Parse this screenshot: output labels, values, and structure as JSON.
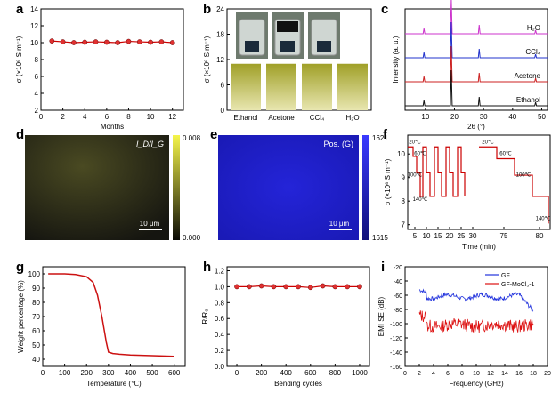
{
  "chart_data": [
    {
      "panel": "a",
      "type": "line",
      "x": [
        1,
        2,
        3,
        4,
        5,
        6,
        7,
        8,
        9,
        10,
        11,
        12
      ],
      "values": [
        10.2,
        10.1,
        10.0,
        10.05,
        10.1,
        10.05,
        10.0,
        10.15,
        10.1,
        10.05,
        10.1,
        10.0
      ],
      "xlabel": "Months",
      "ylabel": "σ (×10⁶ S m⁻¹)",
      "xticks": [
        0,
        2,
        4,
        6,
        8,
        10,
        12
      ],
      "yticks": [
        2,
        4,
        6,
        8,
        10,
        12,
        14
      ],
      "xlim": [
        0,
        13
      ],
      "ylim": [
        2,
        14
      ],
      "line_color": "#cc0000",
      "marker_color": "#e03030"
    },
    {
      "panel": "b",
      "type": "bar",
      "categories": [
        "Ethanol",
        "Acetone",
        "CCl₄",
        "H₂O"
      ],
      "values": [
        11.0,
        11.0,
        11.0,
        11.0
      ],
      "ylabel": "σ (×10⁶ S m⁻¹)",
      "yticks": [
        0,
        6,
        12,
        18,
        24
      ],
      "ylim": [
        0,
        24
      ],
      "bar_color": "#8a8a1a"
    },
    {
      "panel": "c",
      "type": "line",
      "series": [
        {
          "name": "H₂O",
          "color": "#cc33cc"
        },
        {
          "name": "CCl₄",
          "color": "#2233cc"
        },
        {
          "name": "Acetone",
          "color": "#cc2222"
        },
        {
          "name": "Ethanol",
          "color": "#111111"
        }
      ],
      "peaks": [
        9.5,
        18.9,
        28.5,
        47.9
      ],
      "xlabel": "2θ (°)",
      "ylabel": "Intensity (a. u.)",
      "xticks": [
        10,
        20,
        30,
        40,
        50
      ],
      "xlim": [
        3,
        52
      ]
    },
    {
      "panel": "d",
      "type": "heatmap",
      "label": "I_D/I_G",
      "colorbar": [
        "0.008",
        "0.000"
      ],
      "scalebar": "10 μm",
      "colors": [
        "#f5f54a",
        "#0a0a05"
      ]
    },
    {
      "panel": "e",
      "type": "heatmap",
      "label": "Pos. (G)",
      "colorbar": [
        "1621",
        "1615"
      ],
      "scalebar": "10 μm",
      "colors": [
        "#3a3aff",
        "#10107a"
      ]
    },
    {
      "panel": "f",
      "type": "line",
      "xlabel": "Time (min)",
      "ylabel": "σ (×10⁶ S m⁻¹)",
      "xticklabels": [
        "5",
        "10",
        "15",
        "20",
        "25",
        "30",
        "75",
        "80"
      ],
      "yticks": [
        7,
        8,
        9,
        10
      ],
      "ylim": [
        6.8,
        10.8
      ],
      "temps": [
        "20℃",
        "60℃",
        "100℃",
        "140℃",
        "20℃",
        "60℃",
        "100℃",
        "140℃"
      ],
      "steps": [
        10.3,
        9.8,
        9.1,
        8.2
      ],
      "line_color": "#cc0000"
    },
    {
      "panel": "g",
      "type": "line",
      "x": [
        25,
        100,
        150,
        200,
        230,
        250,
        270,
        290,
        300,
        320,
        350,
        400,
        500,
        600
      ],
      "values": [
        100,
        100,
        99.5,
        98,
        94,
        85,
        70,
        52,
        45,
        44,
        43.5,
        43,
        42.5,
        42
      ],
      "xlabel": "Temperature (℃)",
      "ylabel": "Weight percentage (%)",
      "xticks": [
        0,
        100,
        200,
        300,
        400,
        500,
        600
      ],
      "yticks": [
        40,
        50,
        60,
        70,
        80,
        90,
        100
      ],
      "xlim": [
        0,
        650
      ],
      "ylim": [
        35,
        105
      ],
      "line_color": "#cc1111"
    },
    {
      "panel": "h",
      "type": "line",
      "x": [
        0,
        100,
        200,
        300,
        400,
        500,
        600,
        700,
        800,
        900,
        1000
      ],
      "values": [
        1.0,
        1.0,
        1.01,
        1.0,
        1.0,
        1.0,
        0.99,
        1.01,
        1.0,
        1.0,
        1.0
      ],
      "xlabel": "Bending cycles",
      "ylabel": "R/R₀",
      "xticks": [
        0,
        200,
        400,
        600,
        800,
        1000
      ],
      "yticks": [
        0.0,
        0.2,
        0.4,
        0.6,
        0.8,
        1.0,
        1.2
      ],
      "xlim": [
        -80,
        1080
      ],
      "ylim": [
        0,
        1.25
      ],
      "line_color": "#cc0000",
      "marker_color": "#e03030"
    },
    {
      "panel": "i",
      "type": "line",
      "series": [
        {
          "name": "GF",
          "color": "#2233dd"
        },
        {
          "name": "GF-MoCl₅-1",
          "color": "#dd1111"
        }
      ],
      "xlabel": "Frequency (GHz)",
      "ylabel": "EMI SE (dB)",
      "xticks": [
        0,
        2,
        4,
        6,
        8,
        10,
        12,
        14,
        16,
        18,
        20
      ],
      "yticks": [
        -20,
        -40,
        -60,
        -80,
        -100,
        -120,
        -140,
        -160
      ],
      "xlim": [
        0,
        20
      ],
      "ylim": [
        -160,
        -20
      ]
    }
  ],
  "panel_labels": [
    "a",
    "b",
    "c",
    "d",
    "e",
    "f",
    "g",
    "h",
    "i"
  ]
}
